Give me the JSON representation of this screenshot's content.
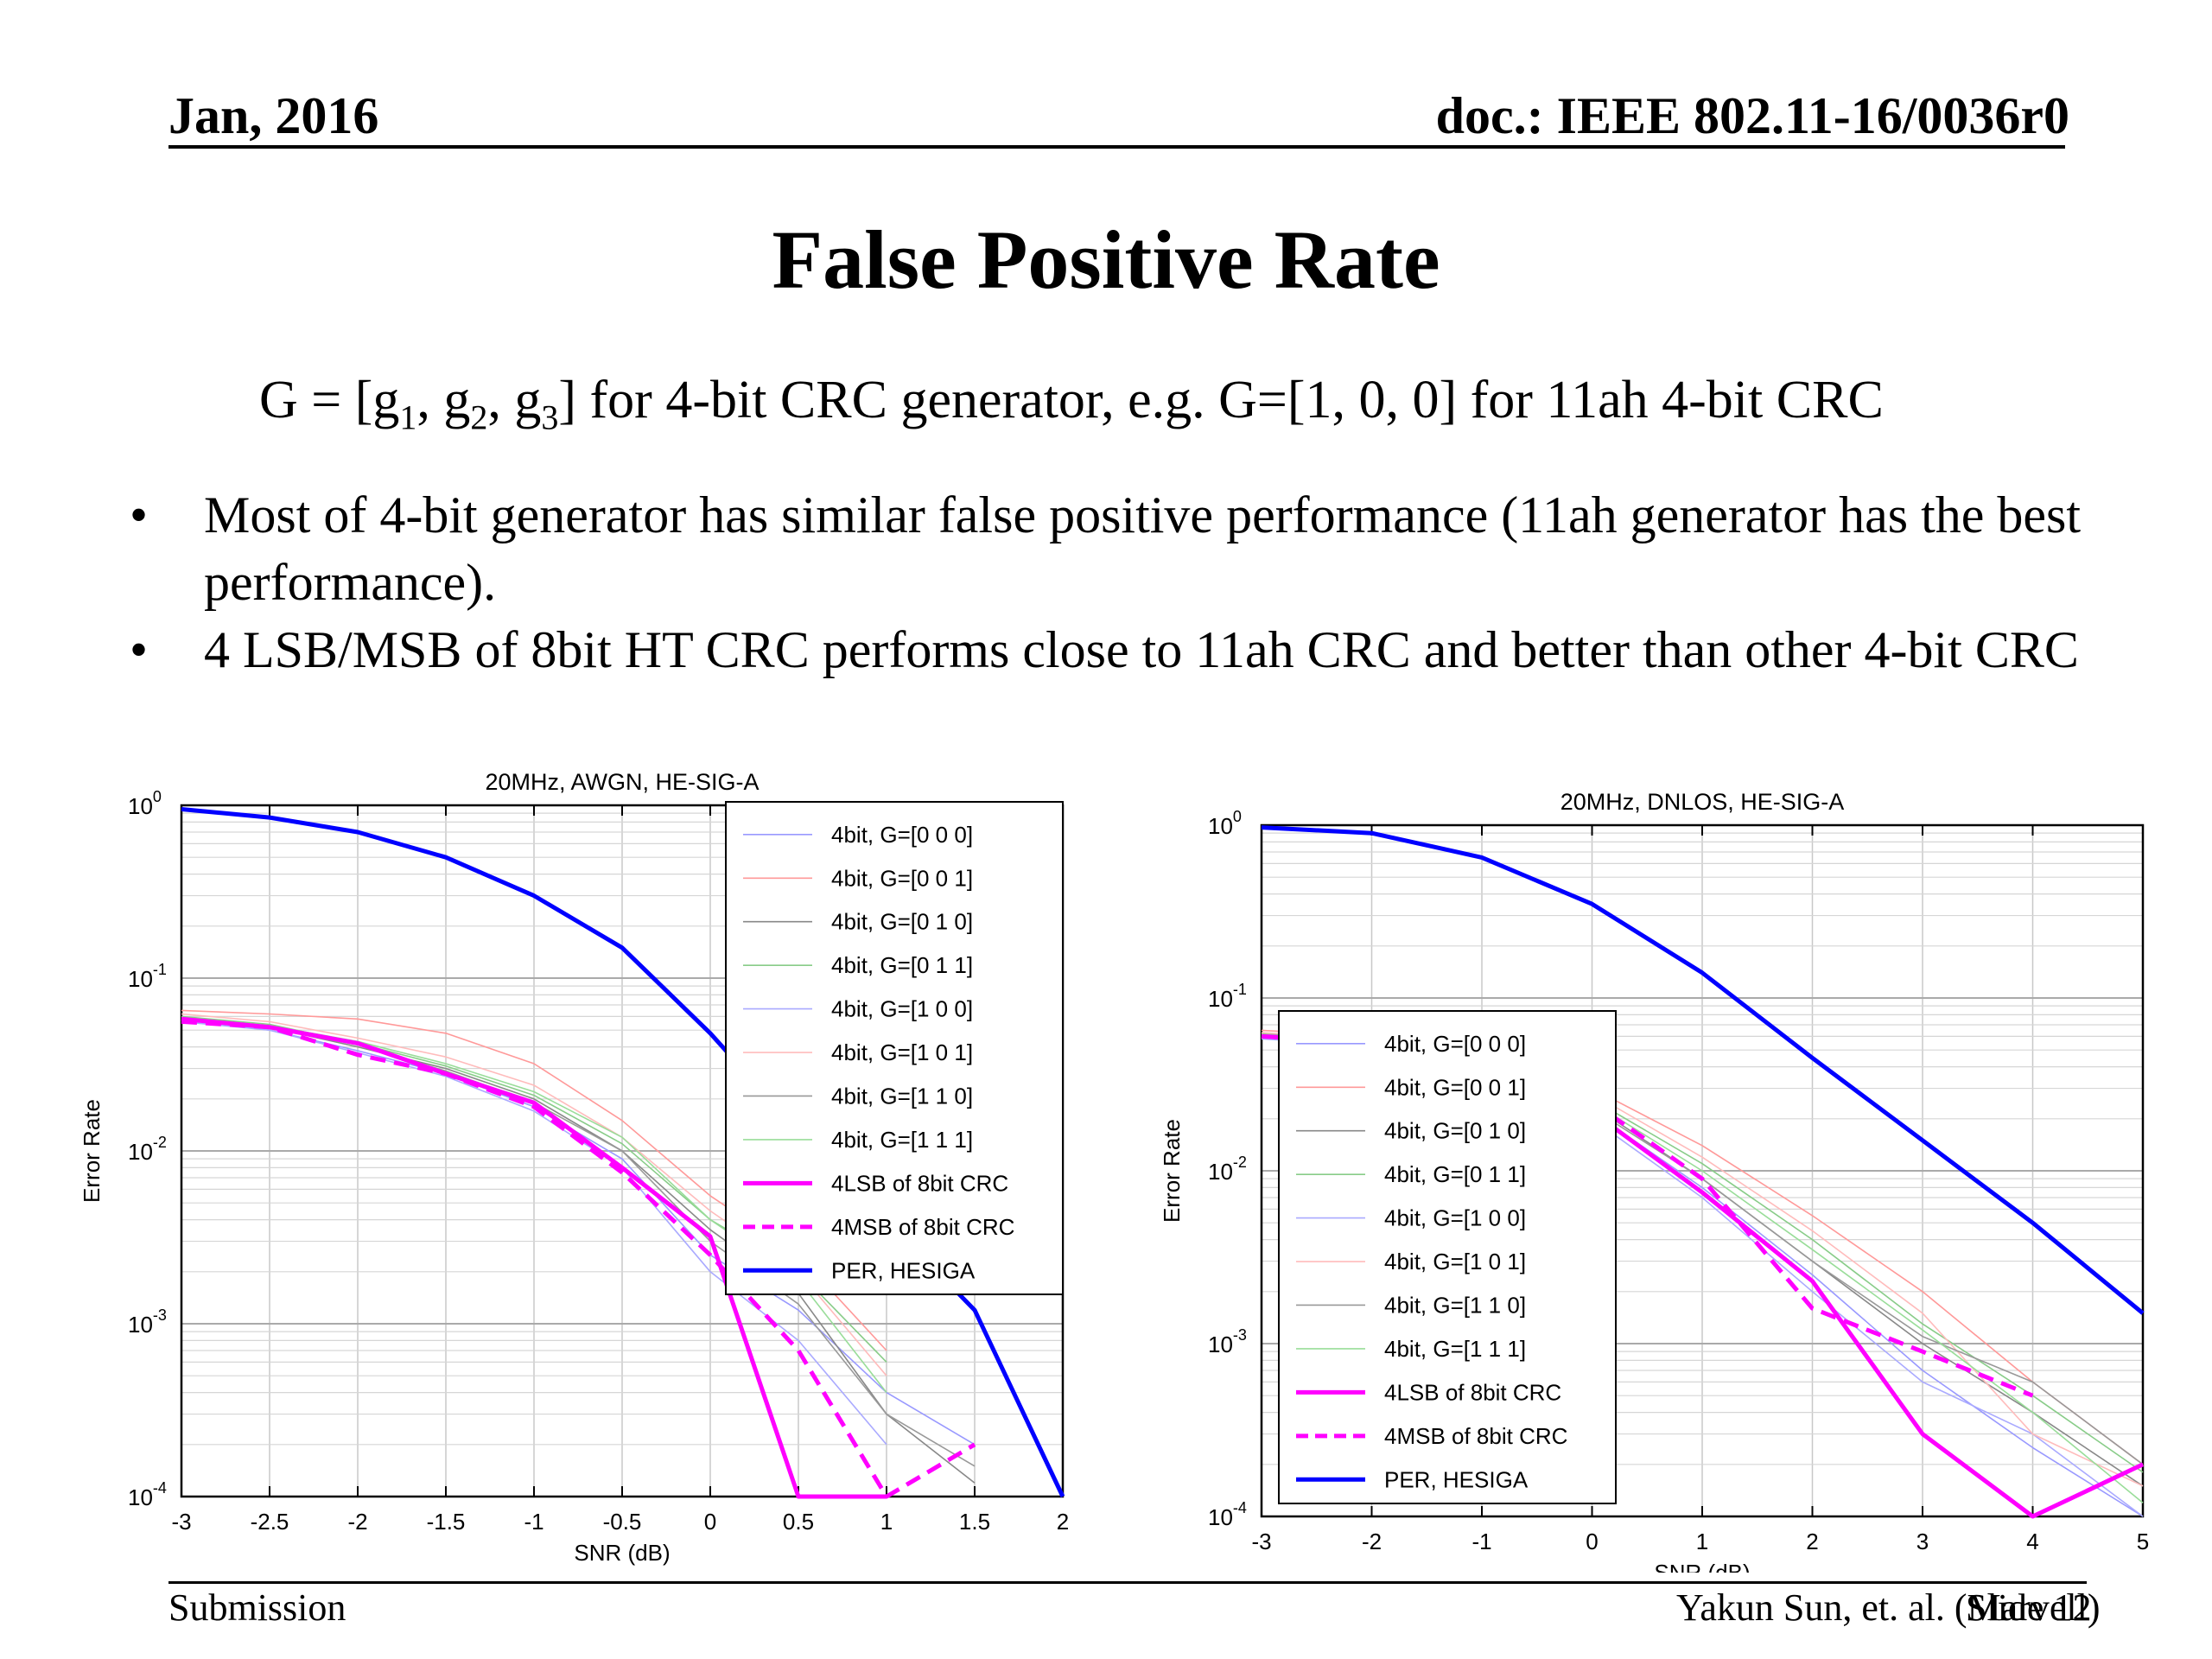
{
  "header": {
    "date": "Jan, 2016",
    "doc": "doc.: IEEE 802.11-16/0036r0"
  },
  "title": "False Positive Rate",
  "equation": {
    "pre": "G = [g",
    "s1": "1",
    "m1": ", g",
    "s2": "2",
    "m2": ", g",
    "s3": "3",
    "post": "] for 4-bit CRC generator, e.g. G=[1, 0, 0] for 11ah 4-bit CRC"
  },
  "bullets": [
    "Most of 4-bit generator has similar false positive performance (11ah generator has the best performance).",
    "4 LSB/MSB of 8bit HT CRC performs close to 11ah CRC and better than other 4-bit CRC"
  ],
  "bullet_symbol": "•",
  "footer": {
    "left": "Submission",
    "author": "Yakun Sun, et. al. (Marvell)",
    "slide": "Slide 12"
  },
  "chart_data": [
    {
      "type": "line",
      "title": "20MHz, AWGN, HE-SIG-A",
      "xlabel": "SNR (dB)",
      "ylabel": "Error Rate",
      "y_scale": "log",
      "xlim": [
        -3,
        2
      ],
      "ylim": [
        0.0001,
        1
      ],
      "x_ticks": [
        -3,
        -2.5,
        -2,
        -1.5,
        -1,
        -0.5,
        0,
        0.5,
        1,
        1.5,
        2
      ],
      "x_tick_labels": [
        "-3",
        "-2.5",
        "-2",
        "-1.5",
        "-1",
        "-0.5",
        "0",
        "0.5",
        "1",
        "1.5",
        "2"
      ],
      "y_tick_labels": [
        "10^0",
        "10^-1",
        "10^-2",
        "10^-3",
        "10^-4"
      ],
      "grid": true,
      "legend_position": "top-right",
      "series": [
        {
          "name": "4bit, G=[0 0 0]",
          "color": "#9999ff",
          "style": "thin",
          "x": [
            -3,
            -2.5,
            -2,
            -1.5,
            -1,
            -0.5,
            0,
            0.5,
            1,
            1.5
          ],
          "y": [
            0.058,
            0.05,
            0.038,
            0.028,
            0.018,
            0.009,
            0.0025,
            0.0012,
            0.0004,
            0.0002
          ]
        },
        {
          "name": "4bit, G=[0 0 1]",
          "color": "#ff9999",
          "style": "thin",
          "x": [
            -3,
            -2.5,
            -2,
            -1.5,
            -1,
            -0.5,
            0,
            0.5,
            1
          ],
          "y": [
            0.065,
            0.062,
            0.058,
            0.048,
            0.032,
            0.015,
            0.0055,
            0.0025,
            0.0007
          ]
        },
        {
          "name": "4bit, G=[0 1 0]",
          "color": "#888888",
          "style": "thin",
          "x": [
            -3,
            -2.5,
            -2,
            -1.5,
            -1,
            -0.5,
            0,
            0.5,
            1,
            1.5
          ],
          "y": [
            0.058,
            0.052,
            0.04,
            0.03,
            0.02,
            0.01,
            0.0035,
            0.0015,
            0.0003,
            0.00012
          ]
        },
        {
          "name": "4bit, G=[0 1 1]",
          "color": "#88cc88",
          "style": "thin",
          "x": [
            -3,
            -2.5,
            -2,
            -1.5,
            -1,
            -0.5,
            0,
            0.5,
            1
          ],
          "y": [
            0.06,
            0.054,
            0.042,
            0.031,
            0.021,
            0.011,
            0.004,
            0.002,
            0.0006
          ]
        },
        {
          "name": "4bit, G=[1 0 0]",
          "color": "#aaaaff",
          "style": "thin",
          "x": [
            -3,
            -2.5,
            -2,
            -1.5,
            -1,
            -0.5,
            0,
            0.5,
            1
          ],
          "y": [
            0.056,
            0.05,
            0.037,
            0.027,
            0.017,
            0.008,
            0.002,
            0.0008,
            0.0002
          ]
        },
        {
          "name": "4bit, G=[1 0 1]",
          "color": "#ffbbbb",
          "style": "thin",
          "x": [
            -3,
            -2.5,
            -2,
            -1.5,
            -1,
            -0.5,
            0,
            0.5,
            1
          ],
          "y": [
            0.062,
            0.056,
            0.045,
            0.035,
            0.024,
            0.012,
            0.0045,
            0.002,
            0.0005
          ]
        },
        {
          "name": "4bit, G=[1 1 0]",
          "color": "#999999",
          "style": "thin",
          "x": [
            -3,
            -2.5,
            -2,
            -1.5,
            -1,
            -0.5,
            0,
            0.5,
            1,
            1.5
          ],
          "y": [
            0.058,
            0.052,
            0.041,
            0.029,
            0.019,
            0.01,
            0.003,
            0.0013,
            0.0003,
            0.00015
          ]
        },
        {
          "name": "4bit, G=[1 1 1]",
          "color": "#99dd99",
          "style": "thin",
          "x": [
            -3,
            -2.5,
            -2,
            -1.5,
            -1,
            -0.5,
            0,
            0.5,
            1
          ],
          "y": [
            0.059,
            0.053,
            0.043,
            0.032,
            0.022,
            0.012,
            0.004,
            0.0018,
            0.0004
          ]
        },
        {
          "name": "4LSB of 8bit CRC",
          "color": "#ff00ff",
          "style": "solid",
          "x": [
            -3,
            -2.5,
            -2,
            -1.5,
            -1,
            -0.5,
            0,
            0.5,
            1
          ],
          "y": [
            0.058,
            0.052,
            0.042,
            0.028,
            0.019,
            0.008,
            0.0032,
            0.0001,
            0.0001
          ]
        },
        {
          "name": "4MSB of 8bit CRC",
          "color": "#ff00ff",
          "style": "dashed",
          "x": [
            -3,
            -2.5,
            -2,
            -1.5,
            -1,
            -0.5,
            0,
            0.5,
            1,
            1.5
          ],
          "y": [
            0.056,
            0.052,
            0.036,
            0.028,
            0.018,
            0.0075,
            0.0025,
            0.0007,
            0.0001,
            0.0002
          ]
        },
        {
          "name": "PER, HESIGA",
          "color": "#0000ff",
          "style": "solid",
          "x": [
            -3,
            -2.5,
            -2,
            -1.5,
            -1,
            -0.5,
            0,
            0.5,
            1,
            1.5,
            2
          ],
          "y": [
            0.95,
            0.85,
            0.7,
            0.5,
            0.3,
            0.15,
            0.048,
            0.013,
            0.004,
            0.0012,
            0.0001
          ]
        }
      ]
    },
    {
      "type": "line",
      "title": "20MHz, DNLOS, HE-SIG-A",
      "xlabel": "SNR (dB)",
      "ylabel": "Error Rate",
      "y_scale": "log",
      "xlim": [
        -3,
        5
      ],
      "ylim": [
        0.0001,
        1
      ],
      "x_ticks": [
        -3,
        -2,
        -1,
        0,
        1,
        2,
        3,
        4,
        5
      ],
      "x_tick_labels": [
        "-3",
        "-2",
        "-1",
        "0",
        "1",
        "2",
        "3",
        "4",
        "5"
      ],
      "y_tick_labels": [
        "10^0",
        "10^-1",
        "10^-2",
        "10^-3",
        "10^-4"
      ],
      "grid": true,
      "legend_position": "bottom-left",
      "series": [
        {
          "name": "4bit, G=[0 0 0]",
          "color": "#9999ff",
          "style": "thin",
          "x": [
            -3,
            -2,
            -1,
            0,
            1,
            2,
            3,
            4,
            5
          ],
          "y": [
            0.06,
            0.055,
            0.04,
            0.022,
            0.008,
            0.0025,
            0.0007,
            0.00025,
            0.0001
          ]
        },
        {
          "name": "4bit, G=[0 0 1]",
          "color": "#ff9999",
          "style": "thin",
          "x": [
            -3,
            -2,
            -1,
            0,
            1,
            2,
            3,
            4,
            5
          ],
          "y": [
            0.065,
            0.06,
            0.048,
            0.03,
            0.014,
            0.0055,
            0.002,
            0.0006,
            0.0002
          ]
        },
        {
          "name": "4bit, G=[0 1 0]",
          "color": "#888888",
          "style": "thin",
          "x": [
            -3,
            -2,
            -1,
            0,
            1,
            2,
            3,
            4,
            5
          ],
          "y": [
            0.06,
            0.056,
            0.042,
            0.024,
            0.009,
            0.003,
            0.001,
            0.0004,
            0.00015
          ]
        },
        {
          "name": "4bit, G=[0 1 1]",
          "color": "#88cc88",
          "style": "thin",
          "x": [
            -3,
            -2,
            -1,
            0,
            1,
            2,
            3,
            4,
            5
          ],
          "y": [
            0.062,
            0.057,
            0.044,
            0.026,
            0.011,
            0.004,
            0.0013,
            0.0005,
            0.00018
          ]
        },
        {
          "name": "4bit, G=[1 0 0]",
          "color": "#aaaaff",
          "style": "thin",
          "x": [
            -3,
            -2,
            -1,
            0,
            1,
            2,
            3,
            4,
            5
          ],
          "y": [
            0.058,
            0.053,
            0.038,
            0.02,
            0.007,
            0.002,
            0.0006,
            0.0003,
            0.0001
          ]
        },
        {
          "name": "4bit, G=[1 0 1]",
          "color": "#ffbbbb",
          "style": "thin",
          "x": [
            -3,
            -2,
            -1,
            0,
            1,
            2,
            3,
            4,
            5
          ],
          "y": [
            0.063,
            0.058,
            0.046,
            0.028,
            0.012,
            0.0045,
            0.0015,
            0.0003,
            0.00015
          ]
        },
        {
          "name": "4bit, G=[1 1 0]",
          "color": "#999999",
          "style": "thin",
          "x": [
            -3,
            -2,
            -1,
            0,
            1,
            2,
            3,
            4,
            5
          ],
          "y": [
            0.06,
            0.055,
            0.041,
            0.023,
            0.009,
            0.003,
            0.0011,
            0.0006,
            0.0002
          ]
        },
        {
          "name": "4bit, G=[1 1 1]",
          "color": "#99dd99",
          "style": "thin",
          "x": [
            -3,
            -2,
            -1,
            0,
            1,
            2,
            3,
            4,
            5
          ],
          "y": [
            0.061,
            0.056,
            0.043,
            0.025,
            0.01,
            0.0035,
            0.0012,
            0.0004,
            0.00012
          ]
        },
        {
          "name": "4LSB of 8bit CRC",
          "color": "#ff00ff",
          "style": "solid",
          "x": [
            -3,
            -2,
            -1,
            0,
            1,
            2,
            3,
            4,
            5
          ],
          "y": [
            0.06,
            0.055,
            0.04,
            0.022,
            0.0075,
            0.0023,
            0.0003,
            0.0001,
            0.0002
          ]
        },
        {
          "name": "4MSB of 8bit CRC",
          "color": "#ff00ff",
          "style": "dashed",
          "x": [
            -3,
            -2,
            -1,
            0,
            1,
            2,
            3,
            4
          ],
          "y": [
            0.06,
            0.056,
            0.042,
            0.025,
            0.009,
            0.0016,
            0.0009,
            0.0005
          ]
        },
        {
          "name": "PER, HESIGA",
          "color": "#0000ff",
          "style": "solid",
          "x": [
            -3,
            -2,
            -1,
            0,
            1,
            2,
            3,
            4,
            5
          ],
          "y": [
            0.97,
            0.9,
            0.65,
            0.35,
            0.14,
            0.045,
            0.015,
            0.005,
            0.0015
          ]
        }
      ]
    }
  ]
}
